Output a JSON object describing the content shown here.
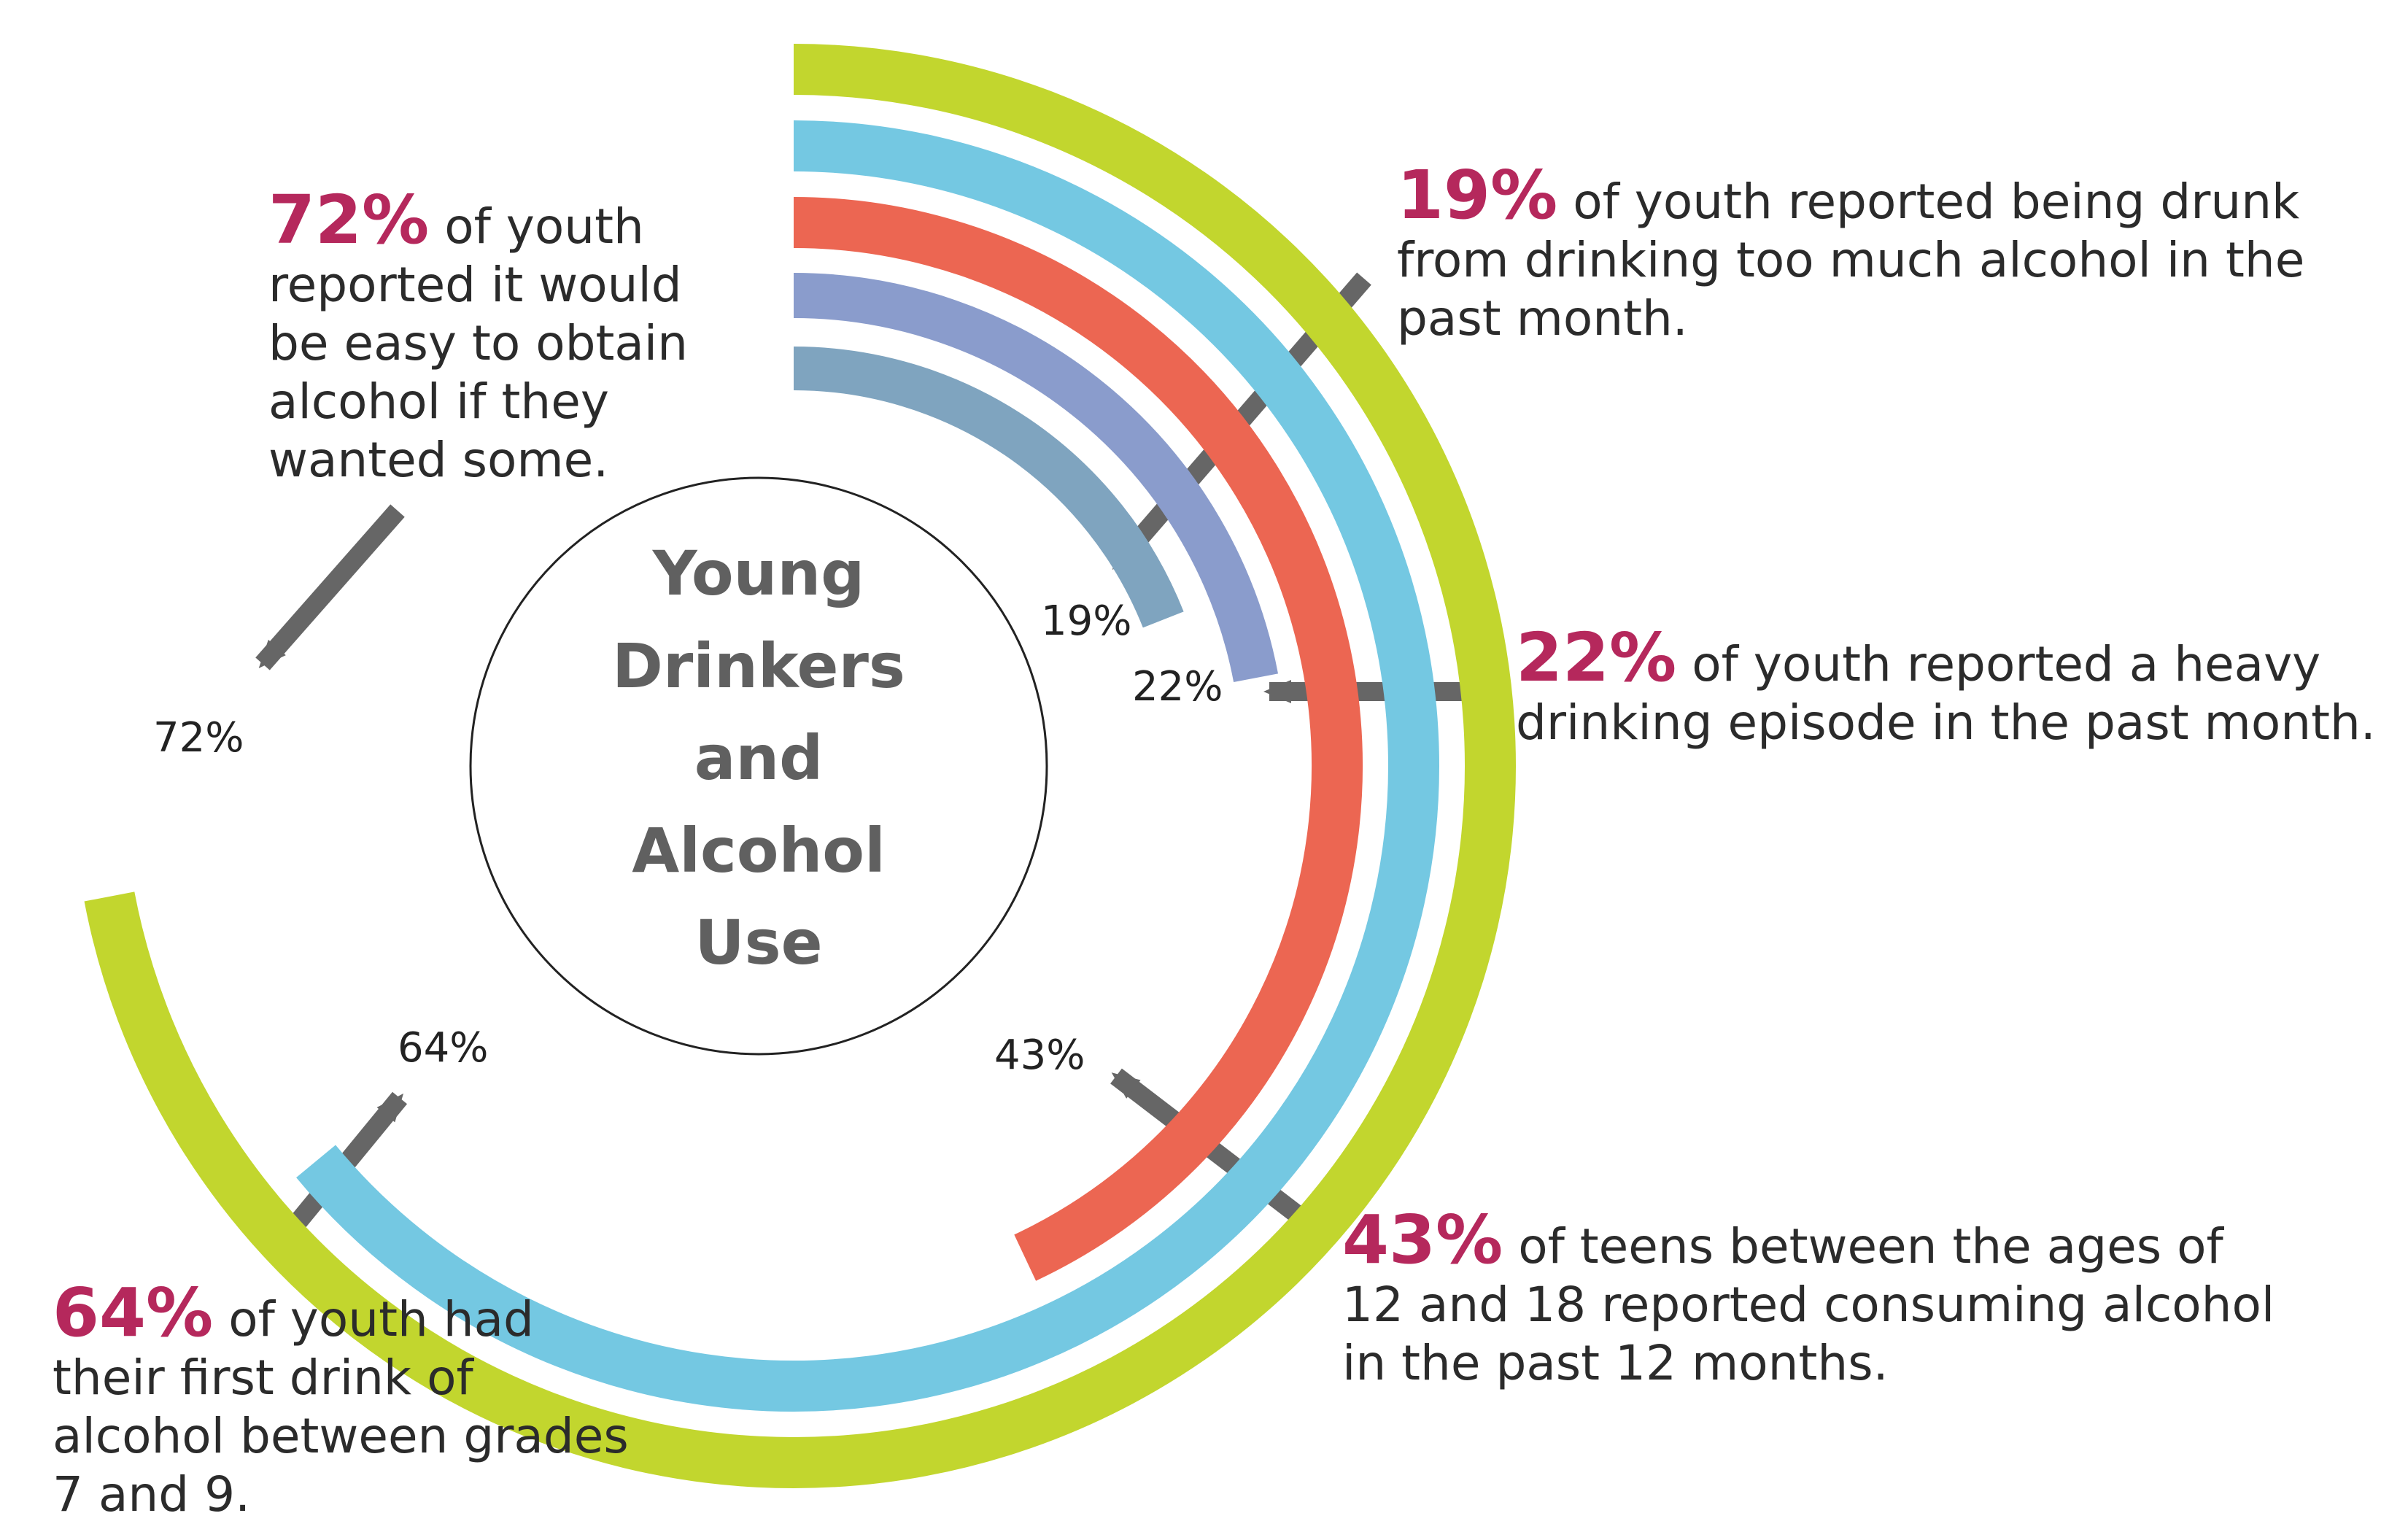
{
  "chart_data": {
    "type": "radial-bar",
    "title": "Young Drinkers and Alcohol Use",
    "title_lines": [
      "Young",
      "Drinkers",
      "and",
      "Alcohol",
      "Use"
    ],
    "series": [
      {
        "value": 72,
        "label": "72%",
        "color": "#c2d62e"
      },
      {
        "value": 64,
        "label": "64%",
        "color": "#74c8e2"
      },
      {
        "value": 43,
        "label": "43%",
        "color": "#ec6652"
      },
      {
        "value": 22,
        "label": "22%",
        "color": "#8a9ccc"
      },
      {
        "value": 19,
        "label": "19%",
        "color": "#7fa4bf"
      }
    ],
    "circle_color": "#222222",
    "leader_color": "#666666"
  },
  "callouts": {
    "c72": {
      "value": "72%",
      "text": "of youth reported it would be easy to obtain alcohol if they wanted some."
    },
    "c19": {
      "value": "19%",
      "text": "of youth reported being drunk from drinking too much alcohol in the past month."
    },
    "c22": {
      "value": "22%",
      "text": "of youth reported a heavy drinking episode in the past month."
    },
    "c43": {
      "value": "43%",
      "text": "of teens between the ages of 12 and 18 reported consuming alcohol in the past 12 months."
    },
    "c64": {
      "value": "64%",
      "text": "of youth had their first drink of alcohol between grades 7 and 9."
    }
  }
}
